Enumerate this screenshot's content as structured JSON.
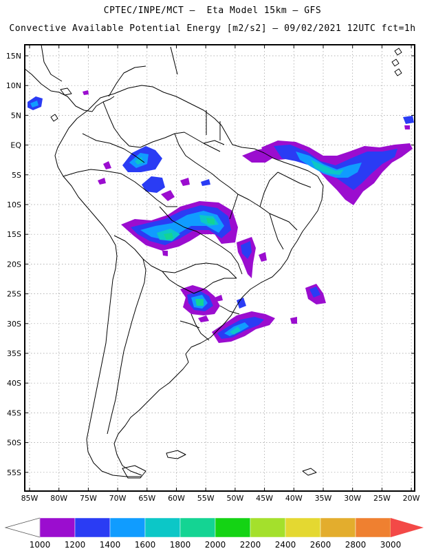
{
  "header": {
    "line1": "CPTEC/INPE/MCT –  Eta Model 15km – GFS",
    "line2": "Convective Available Potential Energy [m2/s2] – 09/02/2021 12UTC fct=1h"
  },
  "axes": {
    "lat_labels": [
      "15N",
      "10N",
      "5N",
      "EQ",
      "5S",
      "10S",
      "15S",
      "20S",
      "25S",
      "30S",
      "35S",
      "40S",
      "45S",
      "50S",
      "55S"
    ],
    "lon_labels": [
      "85W",
      "80W",
      "75W",
      "70W",
      "65W",
      "60W",
      "55W",
      "50W",
      "45W",
      "40W",
      "35W",
      "30W",
      "25W",
      "20W"
    ]
  },
  "colorbar": {
    "values": [
      "1000",
      "1200",
      "1400",
      "1600",
      "1800",
      "2000",
      "2200",
      "2400",
      "2600",
      "2800",
      "3000"
    ],
    "colors": [
      "#9b0dcf",
      "#2a3cf4",
      "#109cff",
      "#0cc7c7",
      "#14d493",
      "#14d314",
      "#a4e02c",
      "#e4d831",
      "#e3ad2d",
      "#ef8030",
      "#f34947"
    ]
  }
}
